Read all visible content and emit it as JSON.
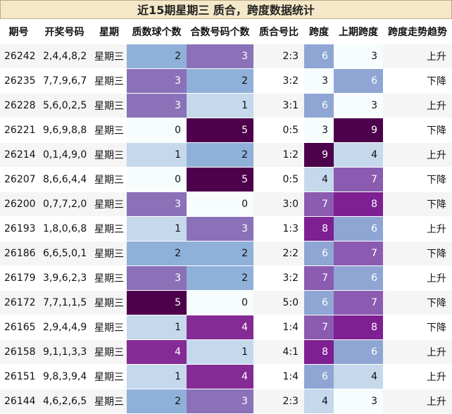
{
  "title": "近15期星期三 质合，跨度数据统计",
  "columns": [
    "期号",
    "开奖号码",
    "星期",
    "质数球个数",
    "合数号码个数",
    "质合号比",
    "跨度",
    "上期跨度",
    "跨度走势趋势"
  ],
  "rows": [
    {
      "id": "26242",
      "nums": "2,4,4,8,2",
      "weekday": "星期三",
      "prime": 2,
      "composite": 3,
      "ratio": "2:3",
      "span": 6,
      "prev_span": 3,
      "trend": "上升"
    },
    {
      "id": "26235",
      "nums": "7,7,9,6,7",
      "weekday": "星期三",
      "prime": 3,
      "composite": 2,
      "ratio": "3:2",
      "span": 3,
      "prev_span": 6,
      "trend": "下降"
    },
    {
      "id": "26228",
      "nums": "5,6,0,2,5",
      "weekday": "星期三",
      "prime": 3,
      "composite": 1,
      "ratio": "3:1",
      "span": 6,
      "prev_span": 3,
      "trend": "上升"
    },
    {
      "id": "26221",
      "nums": "9,6,9,8,8",
      "weekday": "星期三",
      "prime": 0,
      "composite": 5,
      "ratio": "0:5",
      "span": 3,
      "prev_span": 9,
      "trend": "下降"
    },
    {
      "id": "26214",
      "nums": "0,1,4,9,0",
      "weekday": "星期三",
      "prime": 1,
      "composite": 2,
      "ratio": "1:2",
      "span": 9,
      "prev_span": 4,
      "trend": "上升"
    },
    {
      "id": "26207",
      "nums": "8,6,6,4,4",
      "weekday": "星期三",
      "prime": 0,
      "composite": 5,
      "ratio": "0:5",
      "span": 4,
      "prev_span": 7,
      "trend": "下降"
    },
    {
      "id": "26200",
      "nums": "0,7,7,2,0",
      "weekday": "星期三",
      "prime": 3,
      "composite": 0,
      "ratio": "3:0",
      "span": 7,
      "prev_span": 8,
      "trend": "下降"
    },
    {
      "id": "26193",
      "nums": "1,8,0,6,8",
      "weekday": "星期三",
      "prime": 1,
      "composite": 3,
      "ratio": "1:3",
      "span": 8,
      "prev_span": 6,
      "trend": "上升"
    },
    {
      "id": "26186",
      "nums": "6,6,5,0,1",
      "weekday": "星期三",
      "prime": 2,
      "composite": 2,
      "ratio": "2:2",
      "span": 6,
      "prev_span": 7,
      "trend": "下降"
    },
    {
      "id": "26179",
      "nums": "3,9,6,2,3",
      "weekday": "星期三",
      "prime": 3,
      "composite": 2,
      "ratio": "3:2",
      "span": 7,
      "prev_span": 6,
      "trend": "上升"
    },
    {
      "id": "26172",
      "nums": "7,7,1,1,5",
      "weekday": "星期三",
      "prime": 5,
      "composite": 0,
      "ratio": "5:0",
      "span": 6,
      "prev_span": 7,
      "trend": "下降"
    },
    {
      "id": "26165",
      "nums": "2,9,4,4,9",
      "weekday": "星期三",
      "prime": 1,
      "composite": 4,
      "ratio": "1:4",
      "span": 7,
      "prev_span": 8,
      "trend": "下降"
    },
    {
      "id": "26158",
      "nums": "9,1,1,3,3",
      "weekday": "星期三",
      "prime": 4,
      "composite": 1,
      "ratio": "4:1",
      "span": 8,
      "prev_span": 6,
      "trend": "上升"
    },
    {
      "id": "26151",
      "nums": "9,8,3,9,4",
      "weekday": "星期三",
      "prime": 1,
      "composite": 4,
      "ratio": "1:4",
      "span": 6,
      "prev_span": 4,
      "trend": "上升"
    },
    {
      "id": "26144",
      "nums": "4,6,2,6,5",
      "weekday": "星期三",
      "prime": 2,
      "composite": 3,
      "ratio": "2:3",
      "span": 4,
      "prev_span": 3,
      "trend": "上升"
    }
  ],
  "heat_colors": {
    "prime": {
      "0": "#f7fcfd",
      "1": "#c5d8ec",
      "2": "#8fb0d8",
      "3": "#8a71b8",
      "4": "#852b96",
      "5": "#4d004b"
    },
    "composite": {
      "0": "#f7fcfd",
      "1": "#c5d8ec",
      "2": "#8fb0d8",
      "3": "#8a71b8",
      "4": "#852b96",
      "5": "#4d004b"
    },
    "span": {
      "3": "#f7fcfd",
      "4": "#c5d8ec",
      "6": "#8fa6d4",
      "7": "#8a5bb0",
      "8": "#7e1f92",
      "9": "#4d004b"
    },
    "prev_span": {
      "3": "#f7fcfd",
      "4": "#c5d8ec",
      "6": "#8fa6d4",
      "7": "#8a5bb0",
      "8": "#7e1f92",
      "9": "#4d004b"
    }
  }
}
